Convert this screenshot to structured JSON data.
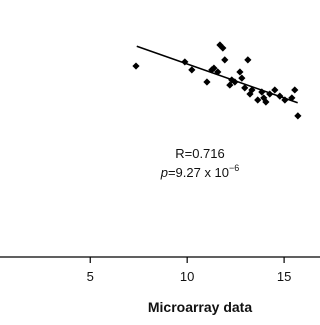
{
  "chart_data": {
    "type": "scatter",
    "x_label": "Microarray data",
    "annotation_r": "R=0.716",
    "annotation_p": "p",
    "annotation_p_rest": "=9.27 x 10",
    "annotation_p_exp": "−6",
    "x": [
      7.36,
      9.88,
      10.24,
      11.02,
      11.27,
      11.38,
      11.58,
      11.69,
      11.84,
      11.94,
      12.3,
      12.46,
      12.72,
      13.13,
      13.24,
      13.34,
      13.64,
      13.85,
      13.95,
      14.06,
      14.26,
      14.52,
      14.78,
      15.04,
      15.4,
      15.55,
      15.71,
      12.97,
      12.2,
      12.82
    ],
    "values": [
      7.43,
      7.59,
      7.28,
      6.81,
      7.28,
      7.35,
      7.2,
      8.25,
      8.13,
      7.67,
      6.89,
      6.81,
      7.2,
      7.67,
      6.34,
      6.5,
      6.11,
      6.42,
      6.19,
      6.03,
      6.34,
      6.5,
      6.26,
      6.11,
      6.19,
      6.5,
      5.49,
      6.58,
      6.69,
      6.96
    ],
    "color": "#000000",
    "trendline": {
      "x": [
        7.4,
        15.7
      ],
      "y": [
        8.2,
        6.0
      ]
    },
    "xlim": [
      0.5,
      16.8
    ],
    "xticks": [
      5,
      10,
      15
    ],
    "ylim": [
      0,
      10
    ]
  }
}
